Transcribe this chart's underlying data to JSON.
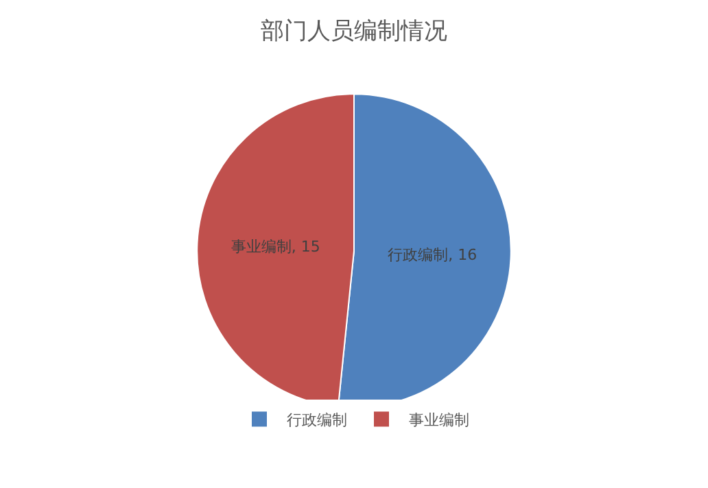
{
  "chart_data": {
    "type": "pie",
    "title": "部门人员编制情况",
    "categories": [
      "行政编制",
      "事业编制"
    ],
    "values": [
      16,
      15
    ],
    "colors": [
      "#4f81bd",
      "#c0504d"
    ],
    "value_labels": [
      "行政编制, 16",
      "事业编制, 15"
    ],
    "legend": "bottom"
  }
}
